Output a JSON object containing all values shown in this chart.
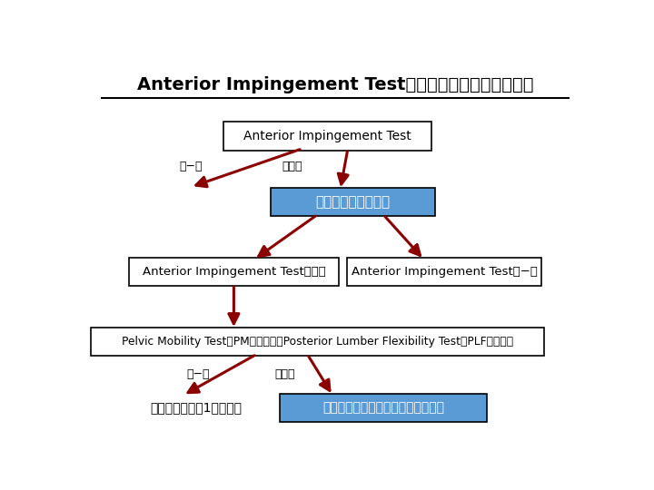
{
  "title": "Anterior Impingement Test　陰性化へのアルゴリズム",
  "bg_color": "#ffffff",
  "arrow_color": "#8B0000",
  "box_border_color": "#000000",
  "blue_box_color": "#5B9BD5",
  "blue_text_color": "#ffffff",
  "top_box_text": "Anterior Impingement Test",
  "mid_blue_text": "股関節の可動域獲得",
  "left_box_text": "Anterior Impingement Test（＋）",
  "right_box_text": "Anterior Impingement Test（−）",
  "bottom_box_text": "Pelvic Mobility Test（PMテスト）・Posterior Lumber Flexibility Test（PLFテスト）",
  "bot_left_text": "関節唇損傷を留1い精査へ",
  "bot_right_text": "骨盤後傾を促すためのエクササイズ",
  "minus_label": "（−）",
  "plus_label": "（＋）"
}
